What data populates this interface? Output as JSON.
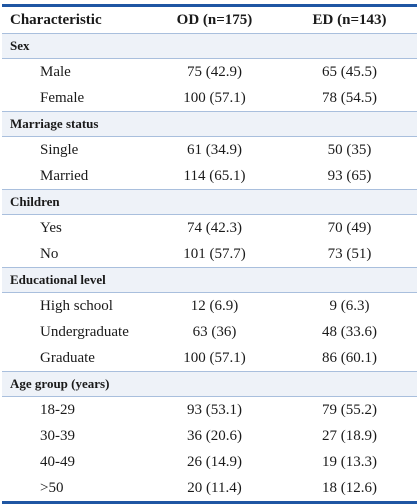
{
  "table": {
    "headers": [
      "Characteristic",
      "OD (n=175)",
      "ED (n=143)"
    ],
    "sections": [
      {
        "title": "Sex",
        "rows": [
          {
            "label": "Male",
            "od": "75 (42.9)",
            "ed": "65 (45.5)"
          },
          {
            "label": "Female",
            "od": "100 (57.1)",
            "ed": "78 (54.5)"
          }
        ]
      },
      {
        "title": "Marriage status",
        "rows": [
          {
            "label": "Single",
            "od": "61 (34.9)",
            "ed": "50 (35)"
          },
          {
            "label": "Married",
            "od": "114 (65.1)",
            "ed": "93 (65)"
          }
        ]
      },
      {
        "title": "Children",
        "rows": [
          {
            "label": "Yes",
            "od": "74 (42.3)",
            "ed": "70 (49)"
          },
          {
            "label": "No",
            "od": "101 (57.7)",
            "ed": "73 (51)"
          }
        ]
      },
      {
        "title": "Educational level",
        "rows": [
          {
            "label": "High school",
            "od": "12 (6.9)",
            "ed": "9 (6.3)"
          },
          {
            "label": "Undergraduate",
            "od": "63 (36)",
            "ed": "48 (33.6)"
          },
          {
            "label": "Graduate",
            "od": "100 (57.1)",
            "ed": "86 (60.1)"
          }
        ]
      },
      {
        "title": "Age group (years)",
        "rows": [
          {
            "label": "18-29",
            "od": "93 (53.1)",
            "ed": "79 (55.2)"
          },
          {
            "label": "30-39",
            "od": "36 (20.6)",
            "ed": "27 (18.9)"
          },
          {
            "label": "40-49",
            "od": "26 (14.9)",
            "ed": "19 (13.3)"
          },
          {
            "label": ">50",
            "od": "20 (11.4)",
            "ed": "18 (12.6)"
          }
        ]
      }
    ]
  },
  "colors": {
    "rule": "#1f56a3",
    "section_bg": "#eef2f8",
    "divider": "#a9bfdd"
  }
}
